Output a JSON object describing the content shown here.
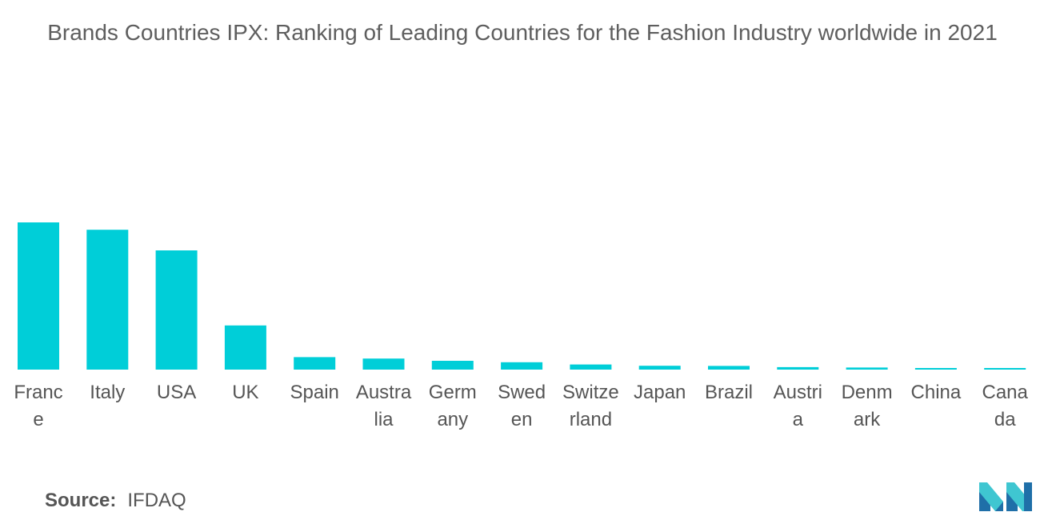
{
  "chart_data": {
    "type": "bar",
    "title": "Brands Countries IPX: Ranking of Leading Countries for the Fashion Industry worldwide in 2021",
    "categories": [
      "France",
      "Italy",
      "USA",
      "UK",
      "Spain",
      "Australia",
      "Germany",
      "Sweden",
      "Switzerland",
      "Japan",
      "Brazil",
      "Austria",
      "Denmark",
      "China",
      "Canada"
    ],
    "category_label_lines": [
      [
        "Franc",
        "e"
      ],
      [
        "Italy"
      ],
      [
        "USA"
      ],
      [
        "UK"
      ],
      [
        "Spain"
      ],
      [
        "Austra",
        "lia"
      ],
      [
        "Germ",
        "any"
      ],
      [
        "Swed",
        "en"
      ],
      [
        "Switze",
        "rland"
      ],
      [
        "Japan"
      ],
      [
        "Brazil"
      ],
      [
        "Austri",
        "a"
      ],
      [
        "Denm",
        "ark"
      ],
      [
        "China"
      ],
      [
        "Cana",
        "da"
      ]
    ],
    "values": [
      100,
      95,
      81,
      30,
      8.5,
      7.5,
      6,
      5,
      3.5,
      2.6,
      2.5,
      1.7,
      1.4,
      1.0,
      0.9
    ],
    "ylim": [
      0,
      100
    ],
    "xlabel": "",
    "ylabel": "",
    "grid": false,
    "legend": "none",
    "colors": {
      "bar": "#00CED8",
      "text": "#555555"
    }
  },
  "footer": {
    "source_key": "Source:",
    "source_value": "IFDAQ"
  },
  "logo": {
    "icon": "mordor-intelligence-logo-icon",
    "colors": [
      "#1F6FA8",
      "#3FC6D1"
    ]
  }
}
